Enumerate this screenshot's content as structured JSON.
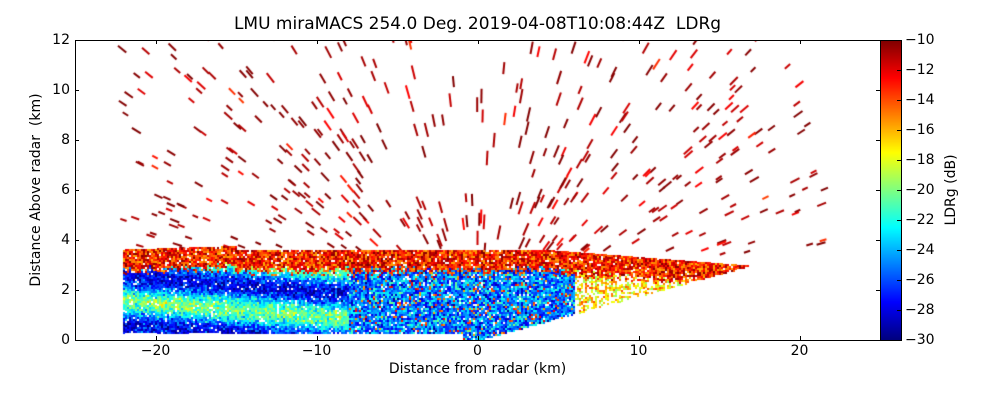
{
  "chart_data": {
    "type": "heatmap",
    "title": "LMU miraMACS 254.0 Deg. 2019-04-08T10:08:44Z  LDRg",
    "xlabel": "Distance from radar (km)",
    "ylabel": "Distance Above radar  (km)",
    "xlim": [
      -25,
      25
    ],
    "ylim": [
      0,
      12
    ],
    "xticks": [
      -20,
      -10,
      0,
      10,
      20
    ],
    "xtick_labels": [
      "−20",
      "−10",
      "0",
      "10",
      "20"
    ],
    "yticks": [
      0,
      2,
      4,
      6,
      8,
      10,
      12
    ],
    "ytick_labels": [
      "0",
      "2",
      "4",
      "6",
      "8",
      "10",
      "12"
    ],
    "colorbar": {
      "label": "LDRg (dB)",
      "range": [
        -30,
        -10
      ],
      "colormap": "jet",
      "ticks": [
        -10,
        -12,
        -14,
        -16,
        -18,
        -20,
        -22,
        -24,
        -26,
        -28,
        -30
      ],
      "tick_labels": [
        "−10",
        "−12",
        "−14",
        "−16",
        "−18",
        "−20",
        "−22",
        "−24",
        "−26",
        "−28",
        "−30"
      ]
    },
    "scan": {
      "azimuth_deg": 254.0,
      "max_range_km": 22,
      "left_edge_x_km": -22,
      "right_min_elevation_deg": 10,
      "cloud_top_km": 3.7,
      "noise_ldr_db": -10
    }
  }
}
